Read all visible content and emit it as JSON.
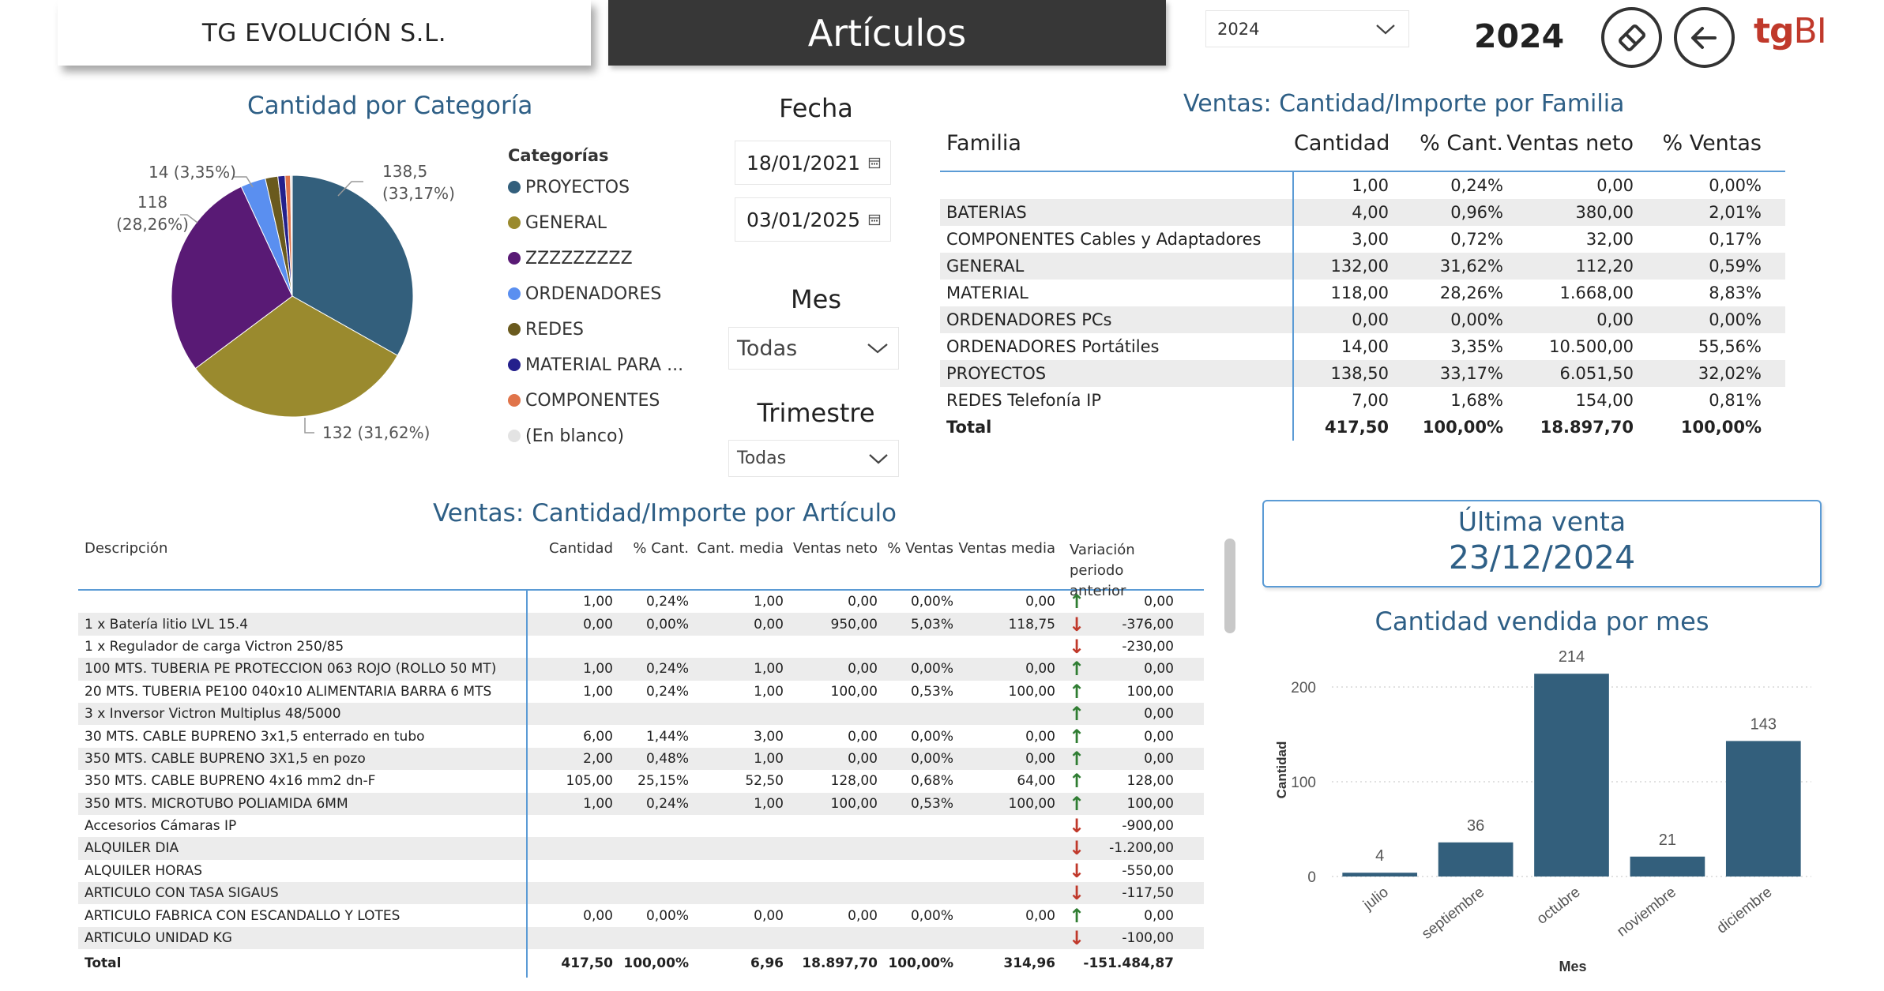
{
  "header": {
    "company": "TG EVOLUCIÓN S.L.",
    "title": "Artículos",
    "year_selected": "2024",
    "year_display": "2024",
    "logo_tg": "tg",
    "logo_bi": "BI"
  },
  "pie": {
    "title": "Cantidad por Categoría",
    "legend_title": "Categorías",
    "categories": [
      {
        "name": "PROYECTOS",
        "value": 138.5,
        "color": "#335f7c"
      },
      {
        "name": "GENERAL",
        "value": 132,
        "color": "#9a8a2e"
      },
      {
        "name": "ZZZZZZZZZ",
        "value": 118,
        "color": "#591a75"
      },
      {
        "name": "ORDENADORES",
        "value": 14,
        "color": "#5a8ff0"
      },
      {
        "name": "REDES",
        "value": 7,
        "color": "#6a5a1e"
      },
      {
        "name": "MATERIAL PARA ...",
        "value": 4,
        "color": "#24208c"
      },
      {
        "name": "COMPONENTES",
        "value": 3,
        "color": "#e0744a"
      },
      {
        "name": "(En blanco)",
        "value": 1,
        "color": "#e3e3e3"
      }
    ],
    "labels": {
      "proyectos_a": "138,5",
      "proyectos_b": "(33,17%)",
      "zzz_a": "118",
      "zzz_b": "(28,26%)",
      "ord": "14 (3,35%)",
      "general": "132 (31,62%)"
    }
  },
  "filters": {
    "fecha_title": "Fecha",
    "fecha_desde": "18/01/2021",
    "fecha_hasta": "03/01/2025",
    "mes_title": "Mes",
    "mes_value": "Todas",
    "trimestre_title": "Trimestre",
    "trimestre_value": "Todas"
  },
  "familia": {
    "title": "Ventas: Cantidad/Importe por Familia",
    "headers": [
      "Familia",
      "Cantidad",
      "% Cant.",
      "Ventas neto",
      "% Ventas"
    ],
    "rows": [
      [
        "",
        "1,00",
        "0,24%",
        "0,00",
        "0,00%"
      ],
      [
        "BATERIAS",
        "4,00",
        "0,96%",
        "380,00",
        "2,01%"
      ],
      [
        "COMPONENTES Cables y Adaptadores",
        "3,00",
        "0,72%",
        "32,00",
        "0,17%"
      ],
      [
        "GENERAL",
        "132,00",
        "31,62%",
        "112,20",
        "0,59%"
      ],
      [
        "MATERIAL",
        "118,00",
        "28,26%",
        "1.668,00",
        "8,83%"
      ],
      [
        "ORDENADORES PCs",
        "0,00",
        "0,00%",
        "0,00",
        "0,00%"
      ],
      [
        "ORDENADORES Portátiles",
        "14,00",
        "3,35%",
        "10.500,00",
        "55,56%"
      ],
      [
        "PROYECTOS",
        "138,50",
        "33,17%",
        "6.051,50",
        "32,02%"
      ],
      [
        "REDES Telefonía IP",
        "7,00",
        "1,68%",
        "154,00",
        "0,81%"
      ]
    ],
    "total": [
      "Total",
      "417,50",
      "100,00%",
      "18.897,70",
      "100,00%"
    ]
  },
  "articulo": {
    "title": "Ventas: Cantidad/Importe por Artículo",
    "headers": [
      "Descripción",
      "Cantidad",
      "% Cant.",
      "Cant. media",
      "Ventas neto",
      "% Ventas",
      "Ventas media",
      "Variación periodo anterior"
    ],
    "rows": [
      {
        "c": [
          "",
          "1,00",
          "0,24%",
          "1,00",
          "0,00",
          "0,00%",
          "0,00"
        ],
        "dir": "up",
        "var": "0,00"
      },
      {
        "c": [
          "1 x Batería litio LVL 15.4",
          "0,00",
          "0,00%",
          "0,00",
          "950,00",
          "5,03%",
          "118,75"
        ],
        "dir": "down",
        "var": "-376,00"
      },
      {
        "c": [
          "1 x Regulador de carga Victron 250/85",
          "",
          "",
          "",
          "",
          "",
          ""
        ],
        "dir": "down",
        "var": "-230,00"
      },
      {
        "c": [
          "100 MTS. TUBERIA PE PROTECCION 063 ROJO (ROLLO 50 MT)",
          "1,00",
          "0,24%",
          "1,00",
          "0,00",
          "0,00%",
          "0,00"
        ],
        "dir": "up",
        "var": "0,00"
      },
      {
        "c": [
          "20 MTS. TUBERIA PE100 040x10 ALIMENTARIA BARRA 6 MTS",
          "1,00",
          "0,24%",
          "1,00",
          "100,00",
          "0,53%",
          "100,00"
        ],
        "dir": "up",
        "var": "100,00"
      },
      {
        "c": [
          "3 x Inversor Victron Multiplus 48/5000",
          "",
          "",
          "",
          "",
          "",
          ""
        ],
        "dir": "up",
        "var": "0,00"
      },
      {
        "c": [
          "30 MTS. CABLE BUPRENO 3x1,5 enterrado en tubo",
          "6,00",
          "1,44%",
          "3,00",
          "0,00",
          "0,00%",
          "0,00"
        ],
        "dir": "up",
        "var": "0,00"
      },
      {
        "c": [
          "350 MTS. CABLE BUPRENO 3X1,5 en pozo",
          "2,00",
          "0,48%",
          "1,00",
          "0,00",
          "0,00%",
          "0,00"
        ],
        "dir": "up",
        "var": "0,00"
      },
      {
        "c": [
          "350 MTS. CABLE BUPRENO 4x16 mm2 dn-F",
          "105,00",
          "25,15%",
          "52,50",
          "128,00",
          "0,68%",
          "64,00"
        ],
        "dir": "up",
        "var": "128,00"
      },
      {
        "c": [
          "350 MTS. MICROTUBO POLIAMIDA 6MM",
          "1,00",
          "0,24%",
          "1,00",
          "100,00",
          "0,53%",
          "100,00"
        ],
        "dir": "up",
        "var": "100,00"
      },
      {
        "c": [
          "Accesorios Cámaras IP",
          "",
          "",
          "",
          "",
          "",
          ""
        ],
        "dir": "down",
        "var": "-900,00"
      },
      {
        "c": [
          "ALQUILER DIA",
          "",
          "",
          "",
          "",
          "",
          ""
        ],
        "dir": "down",
        "var": "-1.200,00"
      },
      {
        "c": [
          "ALQUILER HORAS",
          "",
          "",
          "",
          "",
          "",
          ""
        ],
        "dir": "down",
        "var": "-550,00"
      },
      {
        "c": [
          "ARTICULO CON TASA SIGAUS",
          "",
          "",
          "",
          "",
          "",
          ""
        ],
        "dir": "down",
        "var": "-117,50"
      },
      {
        "c": [
          "ARTICULO FABRICA CON ESCANDALLO Y LOTES",
          "0,00",
          "0,00%",
          "0,00",
          "0,00",
          "0,00%",
          "0,00"
        ],
        "dir": "up",
        "var": "0,00"
      },
      {
        "c": [
          "ARTICULO UNIDAD KG",
          "",
          "",
          "",
          "",
          "",
          ""
        ],
        "dir": "down",
        "var": "-100,00"
      }
    ],
    "total": [
      "Total",
      "417,50",
      "100,00%",
      "6,96",
      "18.897,70",
      "100,00%",
      "314,96",
      "-151.484,87"
    ]
  },
  "ultima_venta": {
    "label": "Última venta",
    "value": "23/12/2024"
  },
  "chart_data": {
    "type": "bar",
    "title": "Cantidad vendida por mes",
    "xlabel": "Mes",
    "ylabel": "Cantidad",
    "categories": [
      "julio",
      "septiembre",
      "octubre",
      "noviembre",
      "diciembre"
    ],
    "values": [
      4,
      36,
      214,
      21,
      143
    ],
    "y_ticks": [
      0,
      100,
      200
    ],
    "ylim": [
      0,
      225
    ],
    "grid": true,
    "bar_color": "#335f7c"
  }
}
